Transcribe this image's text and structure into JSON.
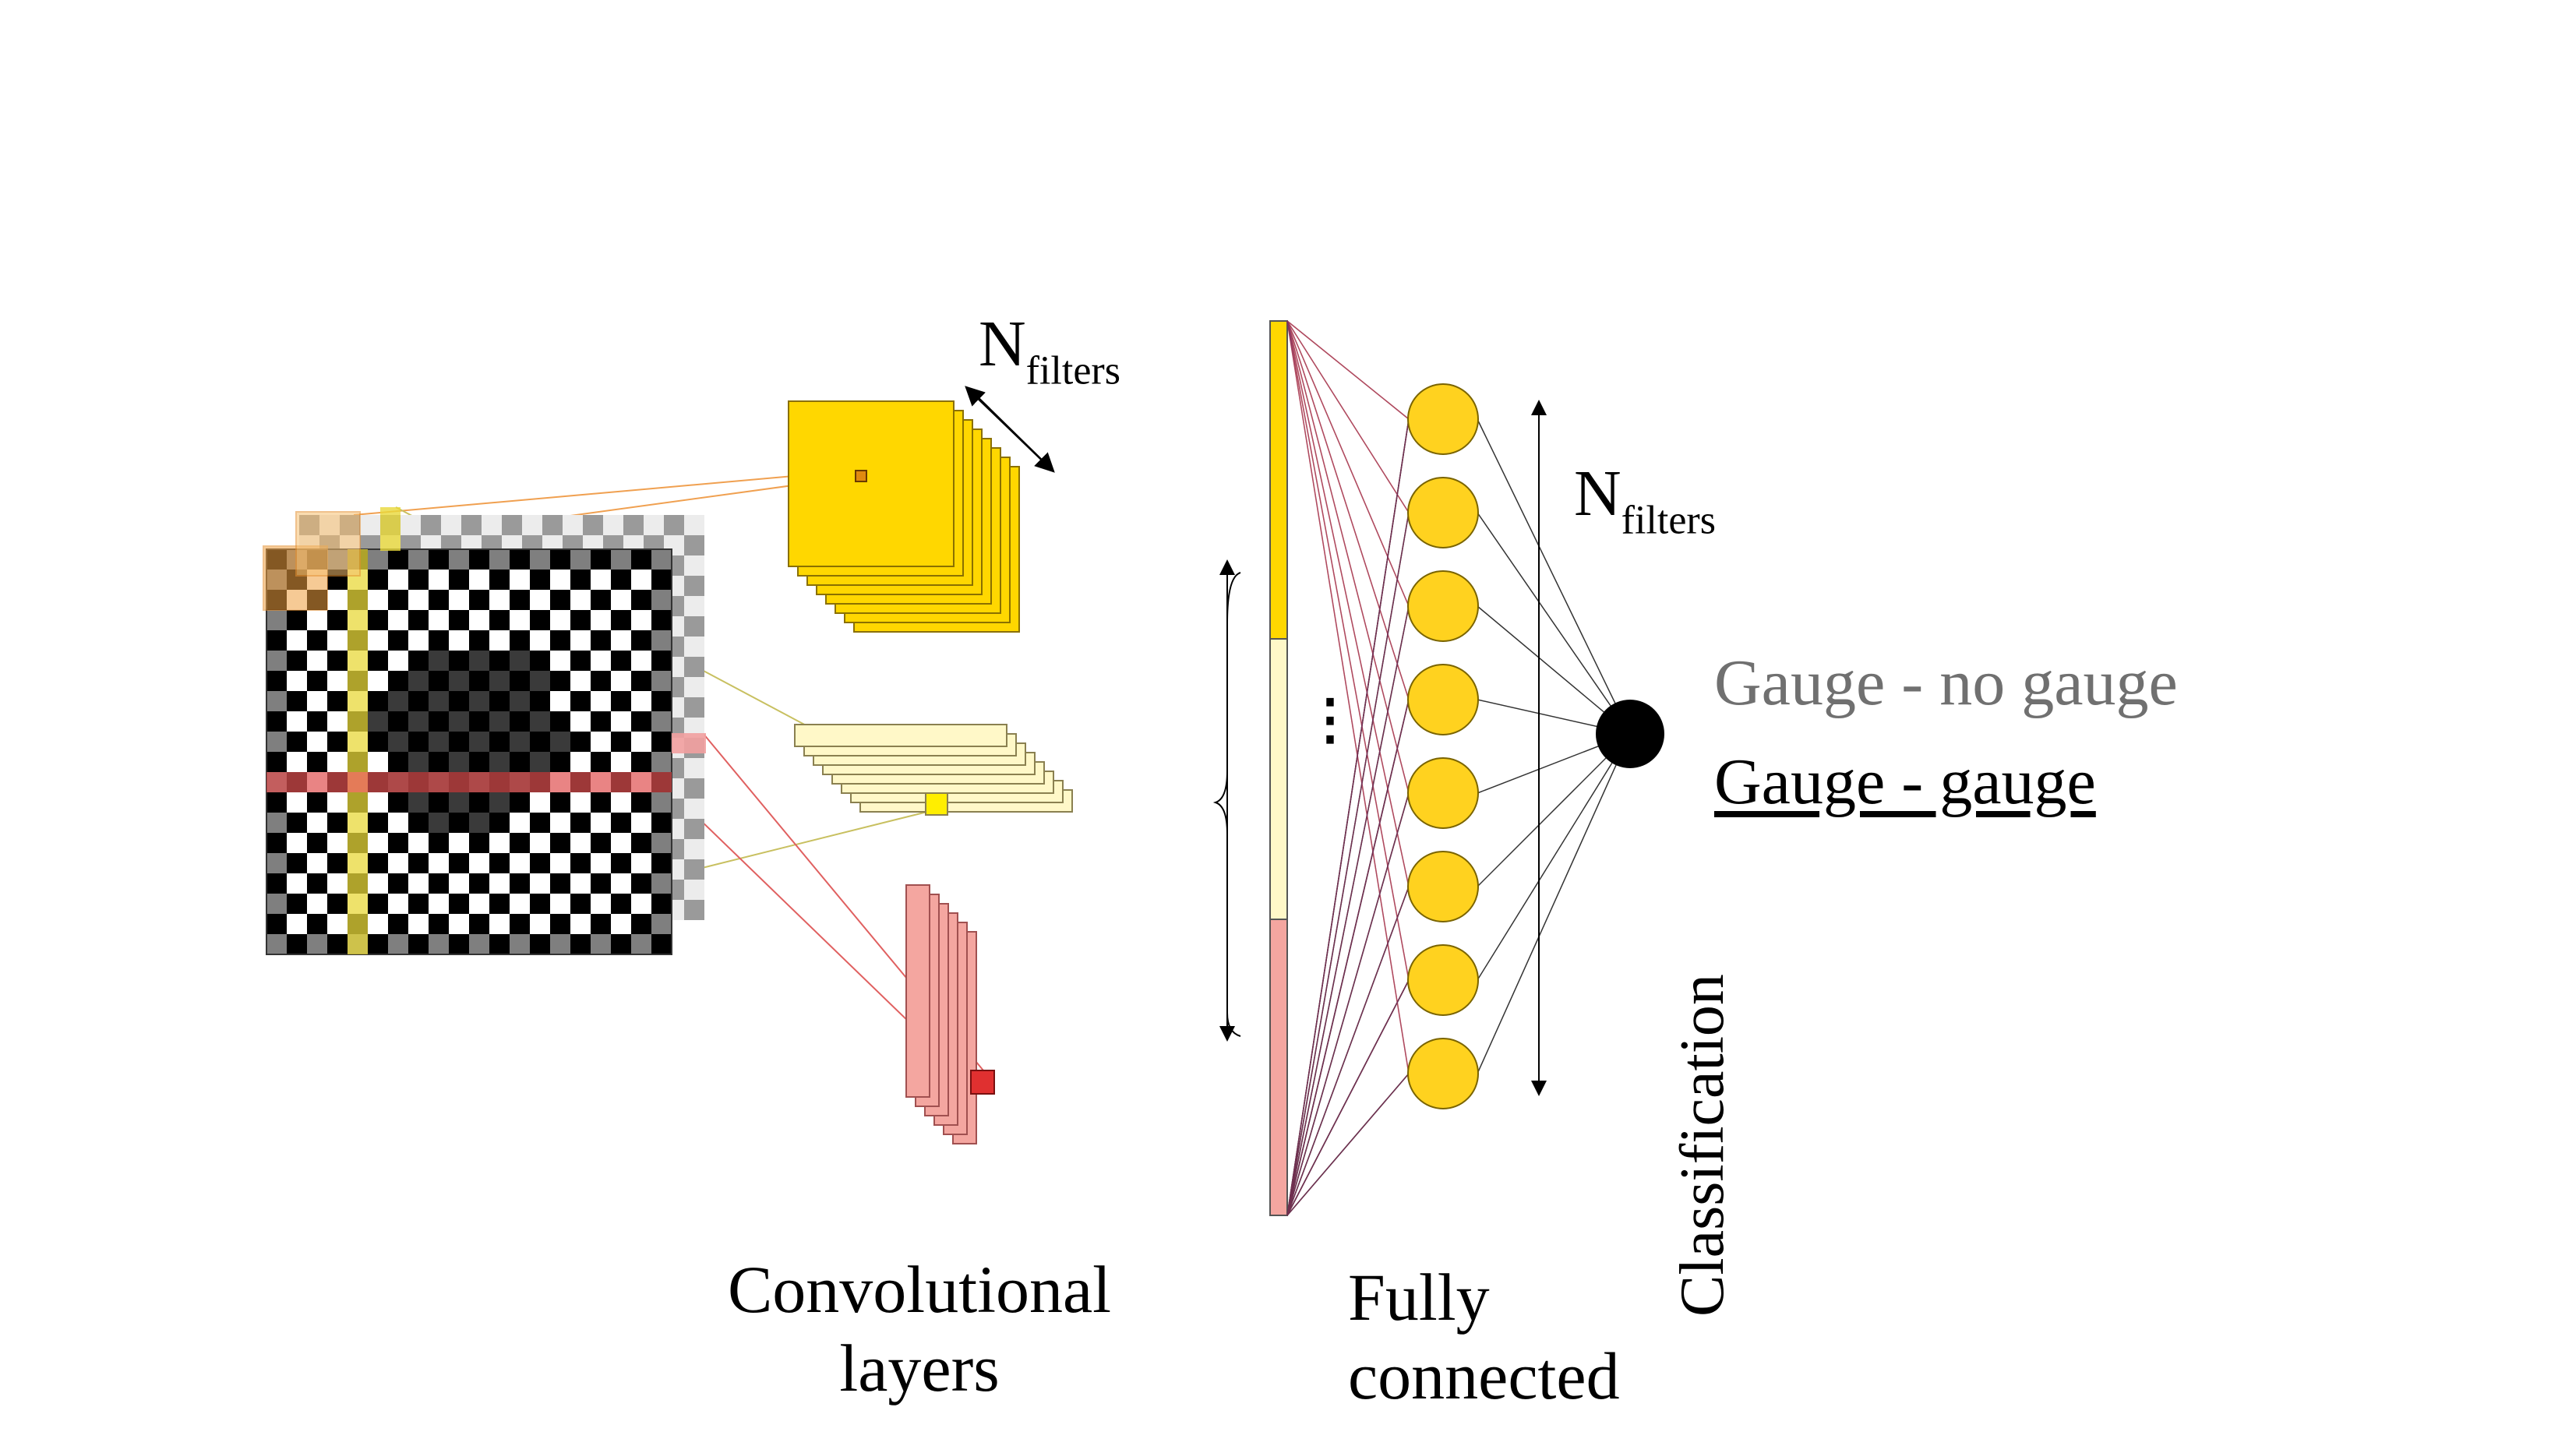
{
  "labels": {
    "n_main": "N",
    "n_sub": "filters",
    "conv_line1": "Convolutional",
    "conv_line2": "layers",
    "fc_line1": "Fully",
    "fc_line2": "connected",
    "class_no": "Gauge - no gauge",
    "class_yes": "Gauge - gauge",
    "classification": "Classification",
    "ellipsis": "⋮"
  },
  "colors": {
    "yellow": "#FFD700",
    "pale_yellow": "#FFF8C8",
    "pink": "#F4A6A0",
    "red": "#E04040",
    "neuron": "#FFD21F",
    "gray_text": "#707070"
  }
}
